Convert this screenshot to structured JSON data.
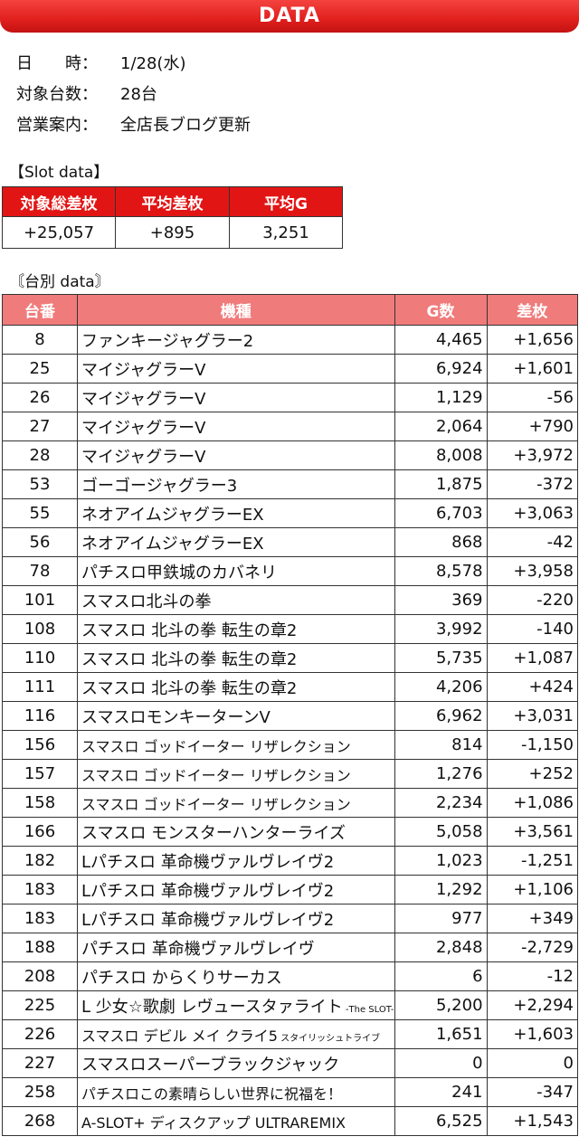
{
  "header": {
    "title": "DATA"
  },
  "info": [
    {
      "label": "日　　時：",
      "value": "1/28(水)"
    },
    {
      "label": "対象台数：",
      "value": "28台"
    },
    {
      "label": "営業案内：",
      "value": "全店長ブログ更新"
    }
  ],
  "slot_data": {
    "heading": "【Slot data】",
    "headers": [
      "対象総差枚",
      "平均差枚",
      "平均G"
    ],
    "values": [
      "+25,057",
      "+895",
      "3,251"
    ]
  },
  "machine_data": {
    "heading": "〘台別 data〙",
    "headers": [
      "台番",
      "機種",
      "G数",
      "差枚"
    ],
    "rows": [
      {
        "no": "8",
        "name": "ファンキージャグラー2",
        "games": "4,465",
        "diff": "+1,656"
      },
      {
        "no": "25",
        "name": "マイジャグラーV",
        "games": "6,924",
        "diff": "+1,601"
      },
      {
        "no": "26",
        "name": "マイジャグラーV",
        "games": "1,129",
        "diff": "-56"
      },
      {
        "no": "27",
        "name": "マイジャグラーV",
        "games": "2,064",
        "diff": "+790"
      },
      {
        "no": "28",
        "name": "マイジャグラーV",
        "games": "8,008",
        "diff": "+3,972"
      },
      {
        "no": "53",
        "name": "ゴーゴージャグラー3",
        "games": "1,875",
        "diff": "-372"
      },
      {
        "no": "55",
        "name": "ネオアイムジャグラーEX",
        "games": "6,703",
        "diff": "+3,063"
      },
      {
        "no": "56",
        "name": "ネオアイムジャグラーEX",
        "games": "868",
        "diff": "-42"
      },
      {
        "no": "78",
        "name": "パチスロ甲鉄城のカバネリ",
        "games": "8,578",
        "diff": "+3,958"
      },
      {
        "no": "101",
        "name": "スマスロ北斗の拳",
        "games": "369",
        "diff": "-220"
      },
      {
        "no": "108",
        "name": "スマスロ 北斗の拳 転生の章2",
        "games": "3,992",
        "diff": "-140"
      },
      {
        "no": "110",
        "name": "スマスロ 北斗の拳 転生の章2",
        "games": "5,735",
        "diff": "+1,087"
      },
      {
        "no": "111",
        "name": "スマスロ 北斗の拳 転生の章2",
        "games": "4,206",
        "diff": "+424"
      },
      {
        "no": "116",
        "name": "スマスロモンキーターンV",
        "games": "6,962",
        "diff": "+3,031"
      },
      {
        "no": "156",
        "name": "スマスロ ゴッドイーター リザレクション",
        "games": "814",
        "diff": "-1,150",
        "small": true
      },
      {
        "no": "157",
        "name": "スマスロ ゴッドイーター リザレクション",
        "games": "1,276",
        "diff": "+252",
        "small": true
      },
      {
        "no": "158",
        "name": "スマスロ ゴッドイーター リザレクション",
        "games": "2,234",
        "diff": "+1,086",
        "small": true
      },
      {
        "no": "166",
        "name": "スマスロ モンスターハンターライズ",
        "games": "5,058",
        "diff": "+3,561"
      },
      {
        "no": "182",
        "name": "Lパチスロ 革命機ヴァルヴレイヴ2",
        "games": "1,023",
        "diff": "-1,251"
      },
      {
        "no": "183",
        "name": "Lパチスロ 革命機ヴァルヴレイヴ2",
        "games": "1,292",
        "diff": "+1,106"
      },
      {
        "no": "183",
        "name": "Lパチスロ 革命機ヴァルヴレイヴ2",
        "games": "977",
        "diff": "+349"
      },
      {
        "no": "188",
        "name": "パチスロ 革命機ヴァルヴレイヴ",
        "games": "2,848",
        "diff": "-2,729"
      },
      {
        "no": "208",
        "name": "パチスロ からくりサーカス",
        "games": "6",
        "diff": "-12"
      },
      {
        "no": "225",
        "name": "L 少女☆歌劇 レヴュースタァライト",
        "sub": " -The SLOT-",
        "games": "5,200",
        "diff": "+2,294"
      },
      {
        "no": "226",
        "name": "スマスロ デビル メイ クライ5",
        "sub": " スタイリッシュトライブ",
        "games": "1,651",
        "diff": "+1,603",
        "small": true
      },
      {
        "no": "227",
        "name": "スマスロスーパーブラックジャック",
        "games": "0",
        "diff": "0"
      },
      {
        "no": "258",
        "name": "パチスロこの素晴らしい世界に祝福を！",
        "games": "241",
        "diff": "-347",
        "small": true
      },
      {
        "no": "268",
        "name": "A-SLOT+ ディスクアップ ULTRAREMIX",
        "games": "6,525",
        "diff": "+1,543",
        "small": true
      }
    ]
  }
}
